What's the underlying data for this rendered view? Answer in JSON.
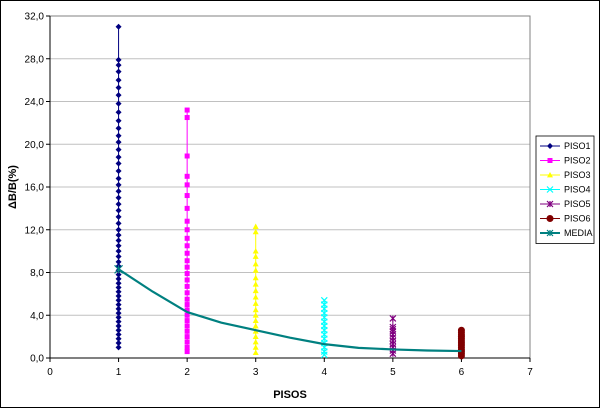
{
  "chart_data": {
    "type": "scatter",
    "title": "",
    "xlabel": "PISOS",
    "ylabel": "ΔB/B(%)",
    "xlim": [
      0,
      7
    ],
    "ylim": [
      0,
      32
    ],
    "x_ticks": [
      "0",
      "1",
      "2",
      "3",
      "4",
      "5",
      "6",
      "7"
    ],
    "y_ticks": [
      "0,0",
      "4,0",
      "8,0",
      "12,0",
      "16,0",
      "20,0",
      "24,0",
      "28,0",
      "32,0"
    ],
    "grid": "horizontal",
    "legend_position": "right",
    "series": [
      {
        "name": "PISO1",
        "color": "#000080",
        "marker": "diamond",
        "x": 1,
        "values": [
          31.0,
          27.9,
          27.4,
          26.8,
          26.0,
          25.3,
          24.6,
          23.8,
          23.0,
          22.2,
          21.5,
          20.8,
          20.2,
          19.5,
          18.8,
          18.2,
          17.5,
          16.8,
          16.2,
          15.6,
          15.0,
          14.4,
          13.8,
          13.2,
          12.6,
          12.0,
          11.5,
          11.0,
          10.5,
          10.0,
          9.5,
          9.0,
          8.6,
          8.2,
          7.8,
          7.4,
          7.0,
          6.6,
          6.2,
          5.8,
          5.4,
          5.0,
          4.6,
          4.2,
          3.8,
          3.4,
          3.0,
          2.6,
          2.2,
          1.8,
          1.4,
          1.0
        ]
      },
      {
        "name": "PISO2",
        "color": "#FF00FF",
        "marker": "square",
        "x": 2,
        "values": [
          23.2,
          22.5,
          18.9,
          17.0,
          16.2,
          15.2,
          14.0,
          12.8,
          12.0,
          11.2,
          10.5,
          9.8,
          9.1,
          8.5,
          7.9,
          7.3,
          6.7,
          6.1,
          5.5,
          5.0,
          4.5,
          4.0,
          3.5,
          3.0,
          2.5,
          2.0,
          1.5,
          1.0,
          0.6
        ]
      },
      {
        "name": "PISO3",
        "color": "#FFFF00",
        "marker": "triangle",
        "x": 3,
        "values": [
          12.3,
          11.8,
          10.0,
          9.5,
          8.8,
          8.2,
          7.5,
          6.9,
          6.3,
          5.7,
          5.1,
          4.5,
          4.0,
          3.5,
          3.0,
          2.5,
          2.0,
          1.5,
          1.0,
          0.5
        ]
      },
      {
        "name": "PISO4",
        "color": "#00FFFF",
        "marker": "x",
        "x": 4,
        "values": [
          5.4,
          5.0,
          4.6,
          4.2,
          3.8,
          3.4,
          3.0,
          2.6,
          2.2,
          1.8,
          1.4,
          1.0,
          0.6,
          0.3
        ]
      },
      {
        "name": "PISO5",
        "color": "#800080",
        "marker": "star",
        "x": 5,
        "values": [
          3.7,
          2.9,
          2.7,
          2.5,
          2.2,
          1.9,
          1.6,
          1.3,
          1.0,
          0.7,
          0.4
        ]
      },
      {
        "name": "PISO6",
        "color": "#800000",
        "marker": "circle",
        "x": 6,
        "values": [
          2.6,
          2.4,
          2.2,
          2.0,
          1.8,
          1.6,
          1.4,
          1.2,
          1.0,
          0.8,
          0.6,
          0.4,
          0.2
        ]
      },
      {
        "name": "MEDIA",
        "color": "#008080",
        "marker": "star",
        "line": true,
        "points": [
          [
            1,
            8.3
          ],
          [
            1.5,
            6.2
          ],
          [
            2,
            4.3
          ],
          [
            2.5,
            3.3
          ],
          [
            3,
            2.6
          ],
          [
            3.5,
            1.9
          ],
          [
            4,
            1.3
          ],
          [
            4.5,
            0.95
          ],
          [
            5,
            0.8
          ],
          [
            5.5,
            0.7
          ],
          [
            6,
            0.65
          ]
        ]
      }
    ]
  }
}
